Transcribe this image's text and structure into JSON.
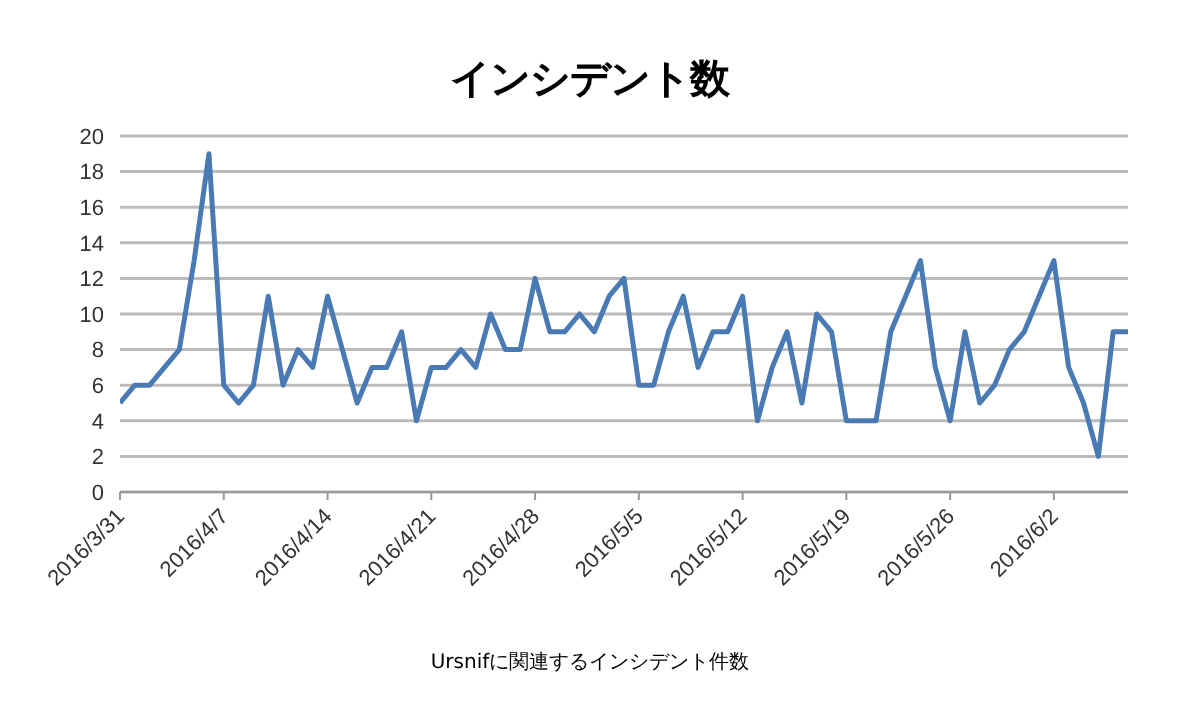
{
  "chart_data": {
    "type": "line",
    "title": "インシデント数",
    "annotations": [
      "Ursnifに関連するインシデント件数"
    ],
    "x": [
      "2016-03-31",
      "2016-04-01",
      "2016-04-02",
      "2016-04-03",
      "2016-04-04",
      "2016-04-05",
      "2016-04-06",
      "2016-04-07",
      "2016-04-08",
      "2016-04-09",
      "2016-04-10",
      "2016-04-11",
      "2016-04-12",
      "2016-04-13",
      "2016-04-14",
      "2016-04-15",
      "2016-04-16",
      "2016-04-17",
      "2016-04-18",
      "2016-04-19",
      "2016-04-20",
      "2016-04-21",
      "2016-04-22",
      "2016-04-23",
      "2016-04-24",
      "2016-04-25",
      "2016-04-26",
      "2016-04-27",
      "2016-04-28",
      "2016-04-29",
      "2016-04-30",
      "2016-05-01",
      "2016-05-02",
      "2016-05-03",
      "2016-05-04",
      "2016-05-05",
      "2016-05-06",
      "2016-05-07",
      "2016-05-08",
      "2016-05-09",
      "2016-05-10",
      "2016-05-11",
      "2016-05-12",
      "2016-05-13",
      "2016-05-14",
      "2016-05-15",
      "2016-05-16",
      "2016-05-17",
      "2016-05-18",
      "2016-05-19",
      "2016-05-20",
      "2016-05-21",
      "2016-05-22",
      "2016-05-23",
      "2016-05-24",
      "2016-05-25",
      "2016-05-26",
      "2016-05-27",
      "2016-05-28",
      "2016-05-29",
      "2016-05-30",
      "2016-05-31",
      "2016-06-01",
      "2016-06-02",
      "2016-06-03",
      "2016-06-04",
      "2016-06-05",
      "2016-06-06",
      "2016-06-07"
    ],
    "series": [
      {
        "color": "#4a7ab4",
        "values": [
          5,
          6,
          6,
          7,
          8,
          13,
          19,
          6,
          5,
          6,
          11,
          6,
          8,
          7,
          11,
          8,
          5,
          7,
          7,
          9,
          4,
          7,
          7,
          8,
          7,
          10,
          8,
          8,
          12,
          9,
          9,
          10,
          9,
          11,
          12,
          6,
          6,
          9,
          11,
          7,
          9,
          9,
          11,
          4,
          7,
          9,
          5,
          10,
          9,
          4,
          4,
          4,
          9,
          11,
          13,
          7,
          4,
          9,
          5,
          6,
          8,
          9,
          11,
          13,
          7,
          5,
          2,
          9,
          9
        ]
      }
    ],
    "xlim": [
      "2016-03-31",
      "2016-06-07"
    ],
    "xticks": [
      {
        "value": "2016-03-31",
        "label": "2016/3/31"
      },
      {
        "value": "2016-04-07",
        "label": "2016/4/7"
      },
      {
        "value": "2016-04-14",
        "label": "2016/4/14"
      },
      {
        "value": "2016-04-21",
        "label": "2016/4/21"
      },
      {
        "value": "2016-04-28",
        "label": "2016/4/28"
      },
      {
        "value": "2016-05-05",
        "label": "2016/5/5"
      },
      {
        "value": "2016-05-12",
        "label": "2016/5/12"
      },
      {
        "value": "2016-05-19",
        "label": "2016/5/19"
      },
      {
        "value": "2016-05-26",
        "label": "2016/5/26"
      },
      {
        "value": "2016-06-02",
        "label": "2016/6/2"
      }
    ],
    "ylim": [
      0,
      20
    ],
    "yticks": [
      0,
      2,
      4,
      6,
      8,
      10,
      12,
      14,
      16,
      18,
      20
    ],
    "grid": "y",
    "marker": "none",
    "line_style": "solid",
    "legend": false
  }
}
